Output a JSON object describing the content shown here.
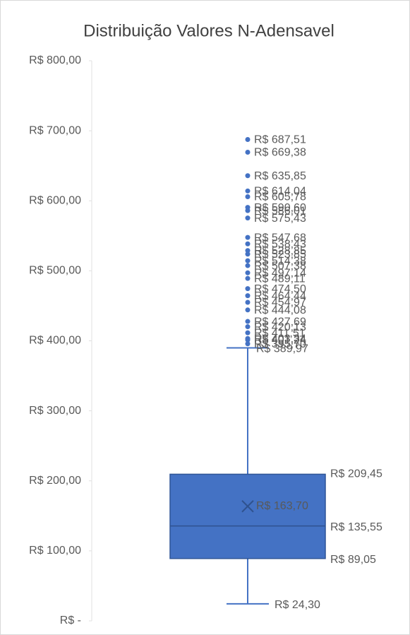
{
  "chart_data": {
    "type": "box",
    "title": "Distribuição Valores N-Adensavel",
    "color": "#4472c4",
    "ylim": [
      0,
      800
    ],
    "yticks": [
      {
        "value": 0,
        "label": "R$ -"
      },
      {
        "value": 100,
        "label": "R$ 100,00"
      },
      {
        "value": 200,
        "label": "R$ 200,00"
      },
      {
        "value": 300,
        "label": "R$ 300,00"
      },
      {
        "value": 400,
        "label": "R$ 400,00"
      },
      {
        "value": 500,
        "label": "R$ 500,00"
      },
      {
        "value": 600,
        "label": "R$ 600,00"
      },
      {
        "value": 700,
        "label": "R$ 700,00"
      },
      {
        "value": 800,
        "label": "R$ 800,00"
      }
    ],
    "box": {
      "whisker_low": 24.3,
      "q1": 89.05,
      "median": 135.55,
      "mean": 163.7,
      "q3": 209.45,
      "whisker_high": 389.97,
      "value_labels": {
        "whisker_low": "R$ 24,30",
        "q1": "R$ 89,05",
        "median": "R$ 135,55",
        "mean": "R$ 163,70",
        "q3": "R$ 209,45",
        "whisker_high": "R$ 389,97"
      }
    },
    "outliers": {
      "values": [
        687.51,
        669.38,
        635.85,
        614.04,
        605.78,
        590.6,
        586.01,
        575.43,
        547.68,
        538.43,
        528.85,
        523.85,
        514.38,
        507.38,
        497.14,
        489.11,
        474.5,
        464.44,
        454.97,
        444.08,
        427.69,
        420.13,
        411.51,
        403.34,
        401.24,
        395.7
      ],
      "value_labels": [
        "R$ 687,51",
        "R$ 669,38",
        "R$ 635,85",
        "R$ 614,04",
        "R$ 605,78",
        "R$ 590,60",
        "R$ 586,01",
        "R$ 575,43",
        "R$ 547,68",
        "R$ 538,43",
        "R$ 528,85",
        "R$ 523,85",
        "R$ 514,38",
        "R$ 507,38",
        "R$ 497,14",
        "R$ 489,11",
        "R$ 474,50",
        "R$ 464,44",
        "R$ 454,97",
        "R$ 444,08",
        "R$ 427,69",
        "R$ 420,13",
        "R$ 411,51",
        "R$ 403,34",
        "R$ 401,24",
        "R$ 395,70"
      ]
    }
  }
}
